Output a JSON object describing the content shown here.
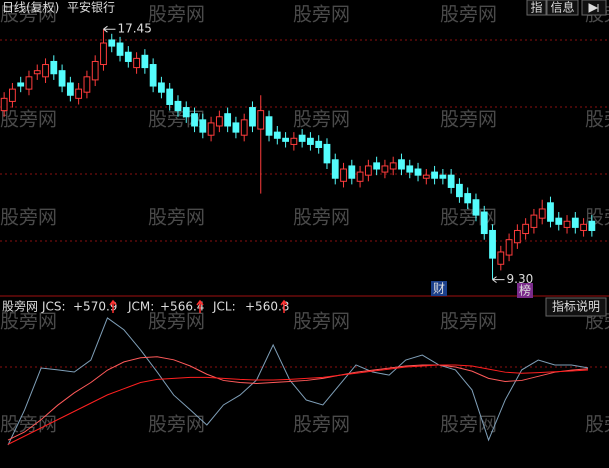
{
  "chart_data": [
    {
      "type": "candlestick",
      "title": "日线(复权)",
      "subtitle": "平安银行",
      "high_label": "17.45",
      "low_label": "9.30",
      "buttons": [
        "指",
        "信息"
      ],
      "markers": [
        "财",
        "榜"
      ],
      "watermark": "股旁网",
      "up_color": "#ff3c3c",
      "down_color": "#54fcfc",
      "ylim": [
        8.8,
        18.4
      ],
      "open": [
        14.8,
        15.1,
        15.7,
        15.5,
        16.0,
        15.9,
        16.4,
        16.1,
        15.7,
        15.2,
        15.4,
        15.8,
        16.3,
        17.1,
        17.0,
        16.7,
        16.2,
        16.6,
        16.3,
        15.7,
        15.5,
        15.1,
        14.9,
        14.7,
        14.5,
        14.0,
        14.3,
        14.7,
        14.4,
        14.0,
        14.9,
        14.2,
        14.6,
        14.1,
        13.9,
        13.7,
        14.0,
        13.9,
        13.8,
        13.7,
        13.2,
        12.5,
        13.0,
        12.5,
        12.7,
        13.1,
        12.8,
        12.9,
        13.2,
        13.0,
        12.9,
        12.6,
        12.8,
        12.7,
        12.7,
        12.4,
        12.1,
        11.9,
        11.5,
        10.9,
        9.8,
        10.1,
        10.5,
        10.8,
        11.0,
        11.3,
        11.8,
        11.3,
        11.0,
        11.3,
        10.9,
        11.2
      ],
      "high": [
        15.4,
        15.7,
        15.9,
        16.1,
        16.3,
        16.5,
        16.6,
        16.3,
        15.9,
        15.7,
        16.1,
        16.6,
        17.45,
        17.3,
        17.2,
        16.9,
        16.7,
        16.8,
        16.5,
        15.9,
        15.7,
        15.3,
        15.1,
        14.9,
        14.7,
        14.6,
        14.8,
        14.9,
        14.6,
        14.7,
        15.1,
        15.3,
        14.8,
        14.3,
        14.1,
        14.1,
        14.2,
        14.1,
        14.0,
        13.9,
        13.4,
        13.1,
        13.2,
        13.0,
        13.2,
        13.3,
        13.2,
        13.3,
        13.4,
        13.2,
        13.1,
        12.9,
        13.0,
        12.9,
        12.9,
        12.6,
        12.3,
        12.1,
        11.7,
        11.1,
        10.4,
        10.8,
        11.1,
        11.3,
        11.6,
        11.9,
        12.0,
        11.5,
        11.4,
        11.5,
        11.3,
        11.4
      ],
      "low": [
        14.6,
        14.9,
        15.4,
        15.3,
        15.8,
        15.7,
        15.8,
        15.4,
        15.1,
        15.0,
        15.2,
        15.6,
        16.1,
        16.7,
        16.4,
        16.2,
        16.0,
        16.0,
        15.4,
        15.2,
        14.8,
        14.6,
        14.4,
        14.1,
        13.9,
        13.8,
        14.1,
        14.1,
        13.9,
        13.8,
        14.1,
        12.1,
        13.8,
        13.7,
        13.6,
        13.5,
        13.6,
        13.5,
        13.4,
        12.9,
        12.4,
        12.3,
        12.4,
        12.3,
        12.5,
        12.7,
        12.6,
        12.7,
        12.7,
        12.6,
        12.5,
        12.4,
        12.4,
        12.4,
        12.1,
        11.8,
        11.6,
        11.2,
        10.6,
        9.3,
        9.6,
        9.9,
        10.3,
        10.6,
        10.8,
        11.1,
        11.0,
        10.9,
        10.8,
        10.8,
        10.7,
        10.7
      ],
      "close": [
        15.2,
        15.5,
        15.6,
        15.9,
        16.1,
        16.3,
        16.0,
        15.6,
        15.3,
        15.5,
        15.9,
        16.4,
        17.0,
        16.9,
        16.6,
        16.4,
        16.5,
        16.2,
        15.6,
        15.4,
        15.0,
        14.8,
        14.6,
        14.3,
        14.1,
        14.4,
        14.6,
        14.3,
        14.1,
        14.5,
        14.3,
        14.8,
        14.0,
        13.9,
        13.8,
        13.9,
        13.8,
        13.7,
        13.6,
        13.1,
        12.6,
        12.9,
        12.6,
        12.8,
        13.0,
        12.9,
        13.0,
        13.1,
        12.9,
        12.8,
        12.7,
        12.7,
        12.6,
        12.6,
        12.3,
        12.0,
        11.8,
        11.4,
        10.8,
        10.0,
        10.2,
        10.6,
        10.9,
        11.1,
        11.4,
        11.6,
        11.2,
        11.1,
        11.2,
        11.0,
        11.1,
        10.9
      ]
    },
    {
      "type": "line",
      "title": "股旁网",
      "button": "指标说明",
      "ylim": [
        100,
        900
      ],
      "series": [
        {
          "name": "JCS:",
          "color": "#7f9fb8",
          "value_labels": [
            "+570.9"
          ],
          "values": [
            197,
            367,
            570,
            561,
            551,
            609,
            813,
            755,
            658,
            551,
            439,
            367,
            294,
            391,
            439,
            512,
            682,
            512,
            415,
            391,
            488,
            585,
            551,
            536,
            609,
            633,
            585,
            561,
            464,
            221,
            415,
            561,
            609,
            585,
            585,
            570.9
          ]
        },
        {
          "name": "JCM:",
          "color": "#ff5a5a",
          "value_labels": [
            "+566.4"
          ],
          "values": [
            221,
            260,
            320,
            390,
            450,
            500,
            560,
            600,
            620,
            625,
            610,
            580,
            540,
            510,
            500,
            495,
            500,
            505,
            510,
            520,
            535,
            550,
            560,
            570,
            580,
            585,
            585,
            575,
            555,
            520,
            505,
            510,
            530,
            550,
            560,
            566.4
          ]
        },
        {
          "name": "JCL:",
          "color": "#ff2020",
          "value_labels": [
            "+560.8"
          ],
          "values": [
            200,
            240,
            280,
            320,
            360,
            400,
            440,
            470,
            500,
            515,
            520,
            525,
            525,
            520,
            515,
            512,
            512,
            515,
            520,
            525,
            535,
            545,
            555,
            565,
            575,
            580,
            585,
            585,
            580,
            565,
            550,
            545,
            548,
            552,
            556,
            560.8
          ]
        }
      ]
    }
  ]
}
